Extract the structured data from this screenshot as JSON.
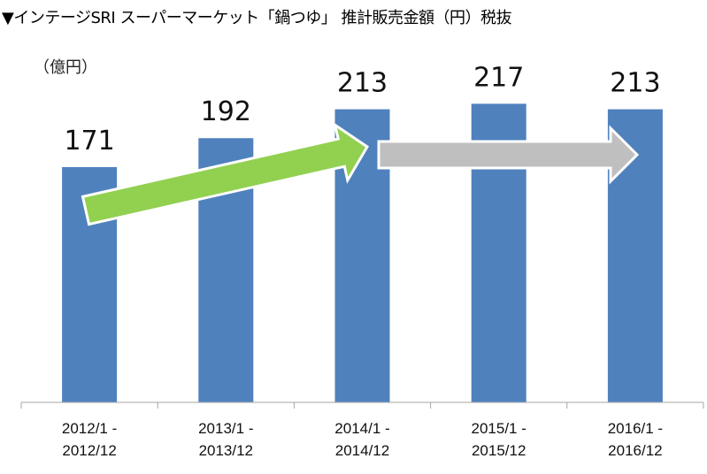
{
  "chart_data": {
    "type": "bar",
    "title": "▼インテージSRI スーパーマーケット「鍋つゆ」 推計販売金額（円）税抜",
    "ylabel": "（億円）",
    "xlabel": "",
    "categories": [
      [
        "2012/1 -",
        "2012/12"
      ],
      [
        "2013/1 -",
        "2013/12"
      ],
      [
        "2014/1 -",
        "2014/12"
      ],
      [
        "2015/1 -",
        "2015/12"
      ],
      [
        "2016/1 -",
        "2016/12"
      ]
    ],
    "values": [
      171,
      192,
      213,
      217,
      213
    ],
    "labels": [
      "171",
      "192",
      "213",
      "217",
      "213"
    ],
    "ylim": [
      0,
      292
    ],
    "grid": false,
    "bar_color": "#4f81bd",
    "annotations": [
      {
        "type": "arrow",
        "from": 0,
        "to": 2,
        "meaning": "increase",
        "color": "#92d050"
      },
      {
        "type": "arrow",
        "from": 2,
        "to": 4,
        "meaning": "flat",
        "color": "#bfbfbf"
      }
    ]
  }
}
